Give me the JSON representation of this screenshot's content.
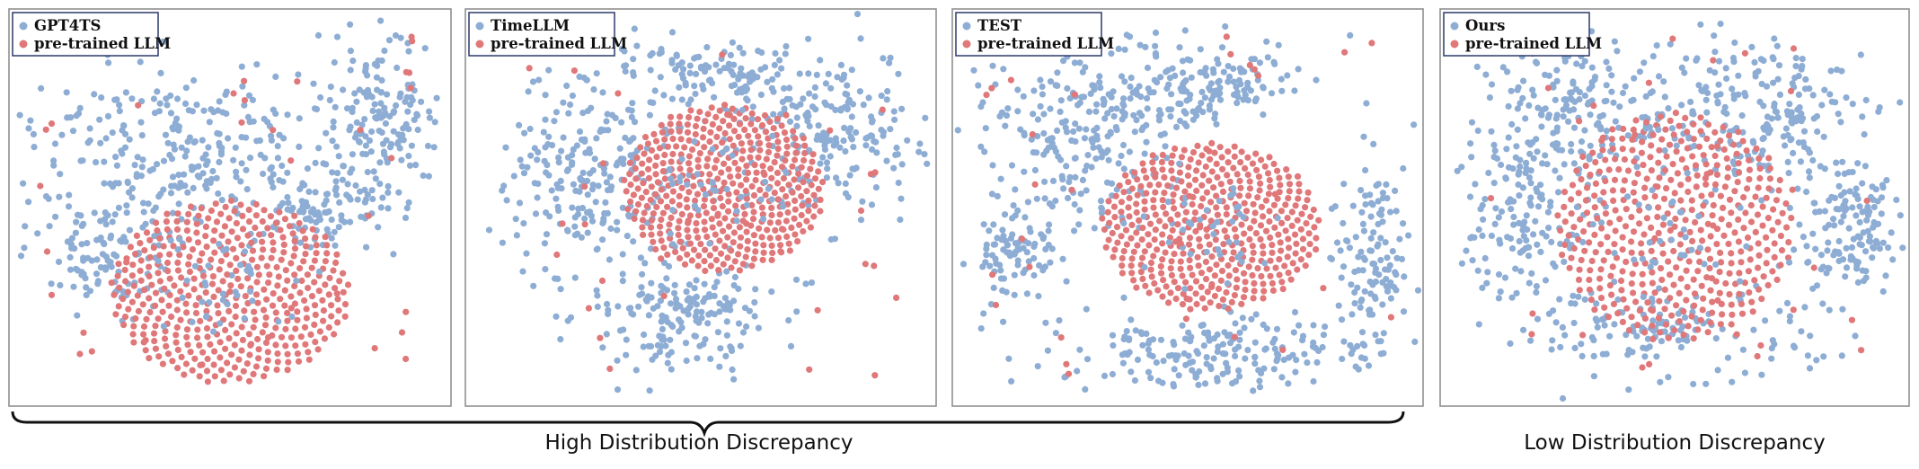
{
  "chart_data": [
    {
      "type": "scatter",
      "series": [
        {
          "name": "GPT4TS",
          "color": "#8eadd4"
        },
        {
          "name": "pre-trained LLM",
          "color": "#e0787a"
        }
      ],
      "legend": "top-left",
      "grid": false,
      "axes_visible": false
    },
    {
      "type": "scatter",
      "series": [
        {
          "name": "TimeLLM",
          "color": "#8eadd4"
        },
        {
          "name": "pre-trained LLM",
          "color": "#e0787a"
        }
      ],
      "legend": "top-left",
      "grid": false,
      "axes_visible": false
    },
    {
      "type": "scatter",
      "series": [
        {
          "name": "TEST",
          "color": "#8eadd4"
        },
        {
          "name": "pre-trained LLM",
          "color": "#e0787a"
        }
      ],
      "legend": "top-left",
      "grid": false,
      "axes_visible": false
    },
    {
      "type": "scatter",
      "series": [
        {
          "name": "Ours",
          "color": "#8eadd4"
        },
        {
          "name": "pre-trained LLM",
          "color": "#e0787a"
        }
      ],
      "legend": "top-left",
      "grid": false,
      "axes_visible": false
    }
  ],
  "captions": {
    "high": "High Distribution Discrepancy",
    "low": "Low Distribution Discrepancy"
  }
}
